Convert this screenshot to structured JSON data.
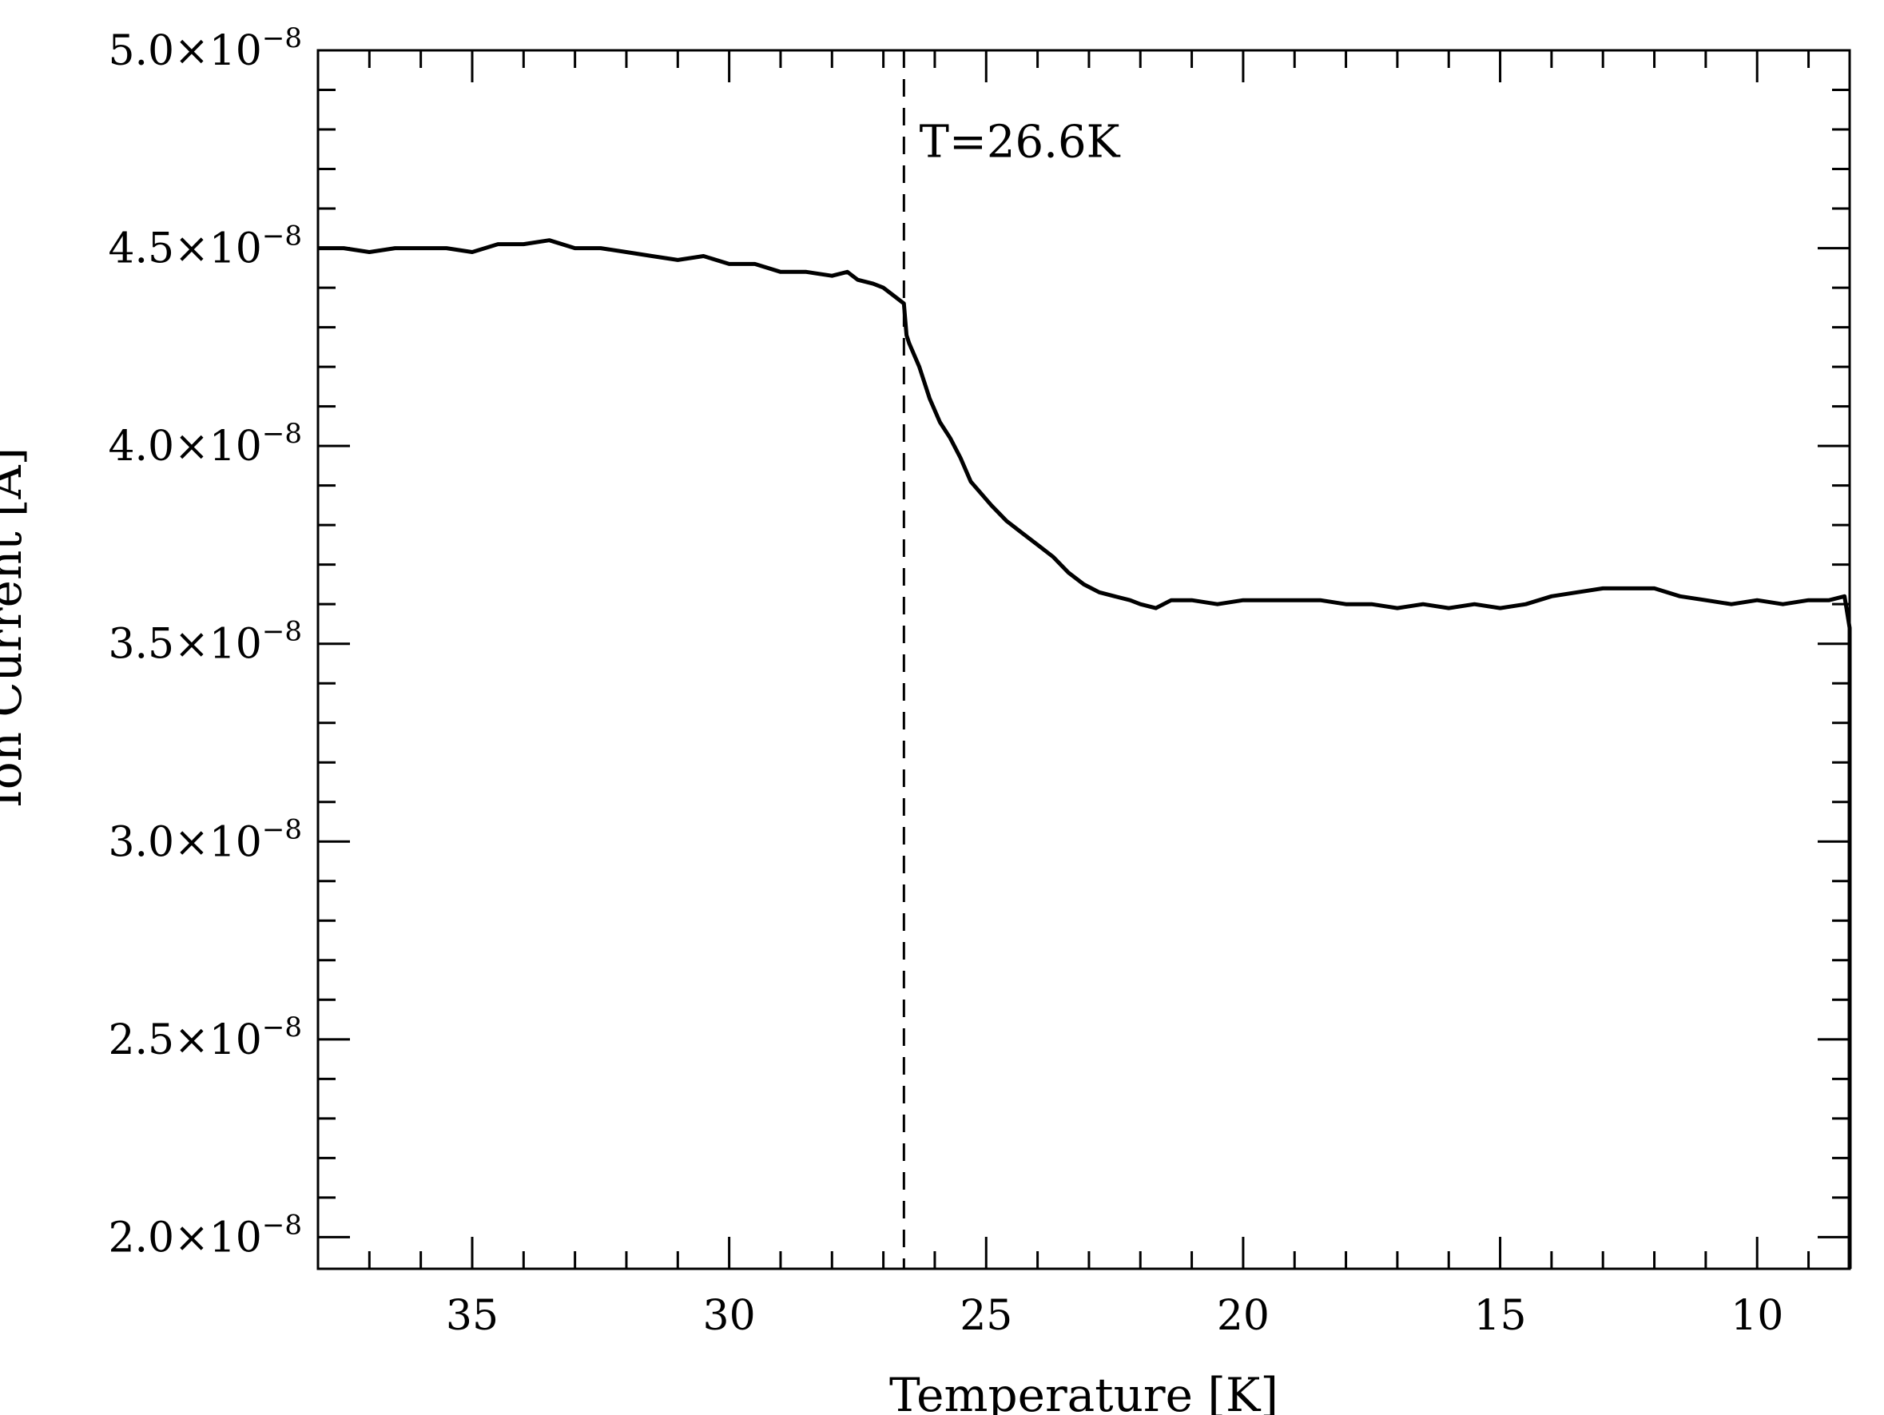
{
  "chart_data": {
    "type": "line",
    "xlabel": "Temperature [K]",
    "ylabel": "Ion Current [A]",
    "x_reversed": true,
    "xlim": [
      38,
      8.2
    ],
    "ylim": [
      1.92e-08,
      5e-08
    ],
    "x_ticks": [
      {
        "value": 35,
        "label": "35"
      },
      {
        "value": 30,
        "label": "30"
      },
      {
        "value": 25,
        "label": "25"
      },
      {
        "value": 20,
        "label": "20"
      },
      {
        "value": 15,
        "label": "15"
      },
      {
        "value": 10,
        "label": "10"
      }
    ],
    "y_ticks": [
      {
        "value": 2e-08,
        "mantissa": "2.0×10",
        "exponent": "−8"
      },
      {
        "value": 2.5e-08,
        "mantissa": "2.5×10",
        "exponent": "−8"
      },
      {
        "value": 3e-08,
        "mantissa": "3.0×10",
        "exponent": "−8"
      },
      {
        "value": 3.5e-08,
        "mantissa": "3.5×10",
        "exponent": "−8"
      },
      {
        "value": 4e-08,
        "mantissa": "4.0×10",
        "exponent": "−8"
      },
      {
        "value": 4.5e-08,
        "mantissa": "4.5×10",
        "exponent": "−8"
      },
      {
        "value": 5e-08,
        "mantissa": "5.0×10",
        "exponent": "−8"
      }
    ],
    "series": [
      {
        "x": [
          38.0,
          37.5,
          37.0,
          36.5,
          36.0,
          35.5,
          35.0,
          34.5,
          34.0,
          33.5,
          33.0,
          32.5,
          32.0,
          31.5,
          31.0,
          30.5,
          30.0,
          29.5,
          29.0,
          28.5,
          28.0,
          27.7,
          27.5,
          27.2,
          27.0,
          26.8,
          26.6,
          26.55,
          26.5,
          26.3,
          26.1,
          25.9,
          25.7,
          25.5,
          25.3,
          25.1,
          24.9,
          24.6,
          24.3,
          24.0,
          23.7,
          23.4,
          23.1,
          22.8,
          22.5,
          22.2,
          22.0,
          21.7,
          21.4,
          21.0,
          20.5,
          20.0,
          19.5,
          19.0,
          18.5,
          18.0,
          17.5,
          17.0,
          16.5,
          16.0,
          15.5,
          15.0,
          14.5,
          14.0,
          13.5,
          13.0,
          12.5,
          12.0,
          11.5,
          11.0,
          10.5,
          10.0,
          9.5,
          9.0,
          8.6,
          8.3,
          8.2,
          8.2
        ],
        "y": [
          4.5e-08,
          4.5e-08,
          4.49e-08,
          4.5e-08,
          4.5e-08,
          4.5e-08,
          4.49e-08,
          4.51e-08,
          4.51e-08,
          4.52e-08,
          4.5e-08,
          4.5e-08,
          4.49e-08,
          4.48e-08,
          4.47e-08,
          4.48e-08,
          4.46e-08,
          4.46e-08,
          4.44e-08,
          4.44e-08,
          4.43e-08,
          4.44e-08,
          4.42e-08,
          4.41e-08,
          4.4e-08,
          4.38e-08,
          4.36e-08,
          4.28e-08,
          4.26e-08,
          4.2e-08,
          4.12e-08,
          4.06e-08,
          4.02e-08,
          3.97e-08,
          3.91e-08,
          3.88e-08,
          3.85e-08,
          3.81e-08,
          3.78e-08,
          3.75e-08,
          3.72e-08,
          3.68e-08,
          3.65e-08,
          3.63e-08,
          3.62e-08,
          3.61e-08,
          3.6e-08,
          3.59e-08,
          3.61e-08,
          3.61e-08,
          3.6e-08,
          3.61e-08,
          3.61e-08,
          3.61e-08,
          3.61e-08,
          3.6e-08,
          3.6e-08,
          3.59e-08,
          3.6e-08,
          3.59e-08,
          3.6e-08,
          3.59e-08,
          3.6e-08,
          3.62e-08,
          3.63e-08,
          3.64e-08,
          3.64e-08,
          3.64e-08,
          3.62e-08,
          3.61e-08,
          3.6e-08,
          3.61e-08,
          3.6e-08,
          3.61e-08,
          3.61e-08,
          3.62e-08,
          3.54e-08,
          1.92e-08
        ]
      }
    ],
    "vline": {
      "x": 26.6,
      "style": "dashed"
    },
    "annotations": [
      {
        "text": "T=26.6K",
        "x": 26.3,
        "y": 4.73e-08
      }
    ],
    "grid": false,
    "legend": "none"
  }
}
